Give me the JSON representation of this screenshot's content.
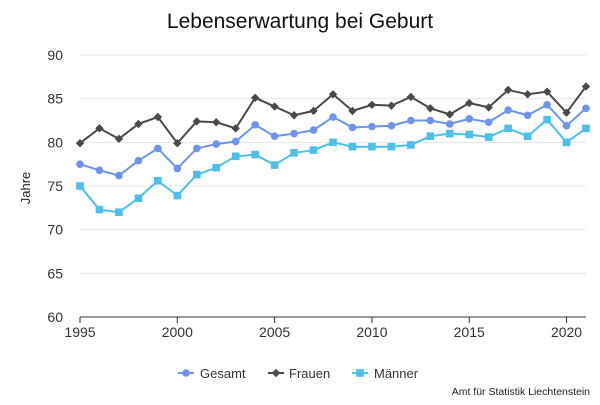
{
  "chart_data": {
    "type": "line",
    "title": "Lebenserwartung bei Geburt",
    "xlabel": "",
    "ylabel": "Jahre",
    "xlim": [
      1995,
      2021
    ],
    "ylim": [
      60,
      90
    ],
    "xticks": [
      1995,
      2000,
      2005,
      2010,
      2015,
      2020
    ],
    "yticks": [
      60,
      65,
      70,
      75,
      80,
      85,
      90
    ],
    "grid": true,
    "legend_position": "bottom",
    "x": [
      1995,
      1996,
      1997,
      1998,
      1999,
      2000,
      2001,
      2002,
      2003,
      2004,
      2005,
      2006,
      2007,
      2008,
      2009,
      2010,
      2011,
      2012,
      2013,
      2014,
      2015,
      2016,
      2017,
      2018,
      2019,
      2020,
      2021
    ],
    "series": [
      {
        "name": "Gesamt",
        "color": "#6f94ee",
        "marker": "circle",
        "values": [
          77.5,
          76.8,
          76.2,
          77.9,
          79.3,
          77.0,
          79.3,
          79.8,
          80.1,
          82.0,
          80.7,
          81.0,
          81.4,
          82.9,
          81.7,
          81.8,
          81.9,
          82.5,
          82.5,
          82.1,
          82.7,
          82.3,
          83.7,
          83.1,
          84.3,
          81.9,
          83.9
        ]
      },
      {
        "name": "Frauen",
        "color": "#4a4a4a",
        "marker": "diamond",
        "values": [
          79.9,
          81.6,
          80.4,
          82.1,
          82.9,
          79.9,
          82.4,
          82.3,
          81.6,
          85.1,
          84.1,
          83.1,
          83.6,
          85.5,
          83.6,
          84.3,
          84.2,
          85.2,
          83.9,
          83.2,
          84.5,
          84.0,
          86.0,
          85.5,
          85.8,
          83.4,
          86.4
        ]
      },
      {
        "name": "Männer",
        "color": "#4dc0ea",
        "marker": "square",
        "values": [
          75.0,
          72.3,
          72.0,
          73.6,
          75.6,
          73.9,
          76.3,
          77.1,
          78.4,
          78.6,
          77.4,
          78.8,
          79.1,
          80.0,
          79.5,
          79.5,
          79.5,
          79.7,
          80.7,
          81.0,
          80.9,
          80.6,
          81.6,
          80.7,
          82.6,
          80.0,
          81.6
        ]
      }
    ],
    "source": "Amt für Statistik Liechtenstein"
  }
}
